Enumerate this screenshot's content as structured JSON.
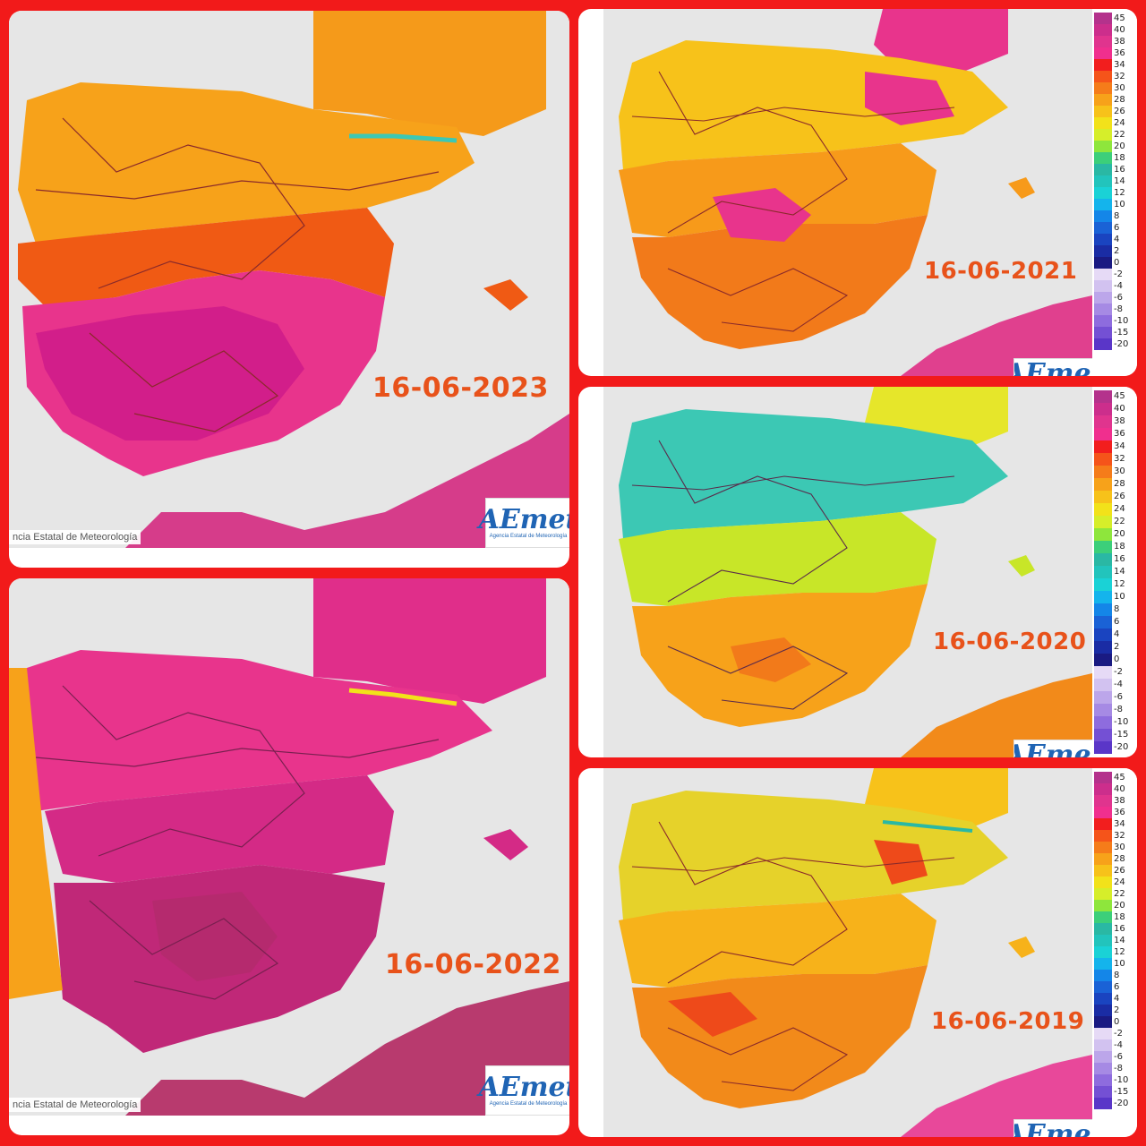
{
  "maps": [
    {
      "date": "16-06-2023",
      "credit": "ncia Estatal de Meteorología",
      "logo": "AEmet",
      "logo_sub": "Agencia Estatal de Meteorología",
      "palette": {
        "north": "#f7a21a",
        "center": "#f05a14",
        "south": "#e8348c",
        "hot": "#d21e8a",
        "france": "#f59a1a",
        "africa": "#d63c8a"
      }
    },
    {
      "date": "16-06-2022",
      "credit": "ncia Estatal de Meteorología",
      "logo": "AEmet",
      "logo_sub": "Agencia Estatal de Meteorología",
      "palette": {
        "north": "#e8348c",
        "center": "#d42a86",
        "south": "#c02878",
        "hot": "#b52a6e",
        "france": "#e02e8a",
        "africa": "#b83a6e"
      }
    },
    {
      "date": "16-06-2021",
      "logo": "AEmet",
      "palette": {
        "north": "#f7c21a",
        "center": "#f79a1a",
        "south": "#f27a1a",
        "hot": "#e8348c",
        "france": "#e8348c",
        "africa": "#e0408e"
      }
    },
    {
      "date": "16-06-2020",
      "logo": "AEmet",
      "palette": {
        "north": "#3cc8b4",
        "center": "#c8e628",
        "south": "#f7a21a",
        "hot": "#f27a1a",
        "france": "#e6e62a",
        "africa": "#f28a1a"
      }
    },
    {
      "date": "16-06-2019",
      "logo": "AEmet",
      "palette": {
        "north": "#e6d22a",
        "center": "#f7b21a",
        "south": "#f28a1a",
        "hot": "#ee4a1a",
        "france": "#f7c21a",
        "africa": "#e8489a"
      }
    }
  ],
  "legend": {
    "labels": [
      "45",
      "40",
      "38",
      "36",
      "34",
      "32",
      "30",
      "28",
      "26",
      "24",
      "22",
      "20",
      "18",
      "16",
      "14",
      "12",
      "10",
      "8",
      "6",
      "4",
      "2",
      "0",
      "-2",
      "-4",
      "-6",
      "-8",
      "-10",
      "-15",
      "-20"
    ],
    "colors": [
      "#b4328c",
      "#cc2e8c",
      "#e0348e",
      "#f02f8e",
      "#f21e1e",
      "#f5541a",
      "#f57c1a",
      "#f7a21a",
      "#f7c21a",
      "#f2e21a",
      "#d6ee2a",
      "#8ee63c",
      "#3ccf7a",
      "#2ab8a4",
      "#22c4bc",
      "#1ad2d6",
      "#14b4ec",
      "#1486e8",
      "#1a62d6",
      "#1a44c0",
      "#1a2ca4",
      "#1a1a82",
      "#e6daf6",
      "#d2c2f0",
      "#bca6ea",
      "#a68ae4",
      "#8e6cde",
      "#7450d4",
      "#5a36c8"
    ]
  }
}
